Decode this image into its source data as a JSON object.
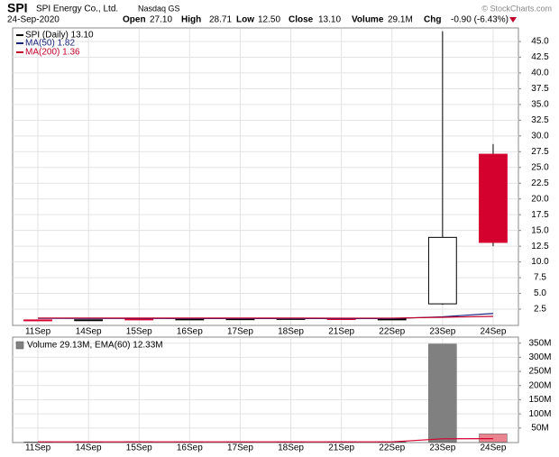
{
  "header": {
    "symbol": "SPI",
    "name": "SPI Energy Co., Ltd.",
    "exchange": "Nasdaq GS",
    "date": "24-Sep-2020",
    "quote": [
      {
        "label": "Open",
        "value": "27.10"
      },
      {
        "label": "High",
        "value": "28.71"
      },
      {
        "label": "Low",
        "value": "12.50"
      },
      {
        "label": "Close",
        "value": "13.10"
      },
      {
        "label": "Volume",
        "value": "29.1M"
      },
      {
        "label": "Chg",
        "value": "-0.90 (-6.43%)"
      }
    ],
    "credit": "© StockCharts.com"
  },
  "chart_data": [
    {
      "type": "candlestick",
      "categories": [
        "11Sep",
        "14Sep",
        "15Sep",
        "16Sep",
        "17Sep",
        "18Sep",
        "21Sep",
        "22Sep",
        "23Sep",
        "24Sep"
      ],
      "open": [
        0.8,
        0.8,
        0.95,
        0.92,
        0.96,
        1.0,
        1.0,
        0.9,
        3.35,
        27.1
      ],
      "high": [
        0.85,
        0.86,
        1.1,
        1.0,
        1.05,
        1.05,
        1.1,
        1.0,
        46.6,
        28.71
      ],
      "low": [
        0.74,
        0.76,
        0.88,
        0.88,
        0.9,
        0.95,
        0.85,
        0.85,
        3.2,
        12.5
      ],
      "close": [
        0.78,
        0.82,
        0.9,
        0.95,
        0.98,
        1.02,
        0.88,
        0.95,
        13.9,
        13.1
      ],
      "name": "SPI (Daily) 13.10",
      "color": "#000000",
      "up_color": "#ffffff",
      "down_color": "#d4002e",
      "series": [
        {
          "name": "MA(50) 1.82",
          "color": "#1a237e",
          "values": [
            1.05,
            1.04,
            1.03,
            1.02,
            1.02,
            1.02,
            1.01,
            1.01,
            1.3,
            1.82
          ]
        },
        {
          "name": "MA(200) 1.36",
          "color": "#c2002a",
          "values": [
            1.1,
            1.1,
            1.09,
            1.09,
            1.09,
            1.09,
            1.08,
            1.08,
            1.22,
            1.36
          ]
        }
      ],
      "ylim": [
        0,
        47
      ],
      "yticks": [
        2.5,
        {
          "value": 5,
          "label": "5.0"
        },
        7.5,
        {
          "value": 10,
          "label": "10.0"
        },
        12.5,
        {
          "value": 15,
          "label": "15.0"
        },
        17.5,
        {
          "value": 20,
          "label": "20.0"
        },
        22.5,
        {
          "value": 25,
          "label": "25.0"
        },
        27.5,
        {
          "value": 30,
          "label": "30.0"
        },
        32.5,
        {
          "value": 35,
          "label": "35.0"
        },
        37.5,
        {
          "value": 40,
          "label": "40.0"
        },
        42.5,
        {
          "value": 45,
          "label": "45.0"
        }
      ],
      "grid": true
    },
    {
      "type": "bar",
      "categories": [
        "11Sep",
        "14Sep",
        "15Sep",
        "16Sep",
        "17Sep",
        "18Sep",
        "21Sep",
        "22Sep",
        "23Sep",
        "24Sep"
      ],
      "legend": "Volume 29.13M, EMA(60) 12.33M",
      "values": [
        0.6,
        0.5,
        1.5,
        0.8,
        0.7,
        0.6,
        1.0,
        0.9,
        347,
        29.13
      ],
      "colors": [
        "#808080",
        "#808080",
        "#808080",
        "#808080",
        "#808080",
        "#808080",
        "#e8838f",
        "#808080",
        "#808080",
        "#e8838f"
      ],
      "series": [
        {
          "color": "#d4002e",
          "values": [
            1.0,
            1.0,
            1.0,
            1.0,
            1.0,
            1.0,
            1.0,
            1.0,
            11.8,
            12.33
          ]
        }
      ],
      "ylim": [
        0,
        365
      ],
      "yticks": [
        {
          "value": 50,
          "label": "50M"
        },
        {
          "value": 100,
          "label": "100M"
        },
        {
          "value": 150,
          "label": "150M"
        },
        {
          "value": 200,
          "label": "200M"
        },
        {
          "value": 250,
          "label": "250M"
        },
        {
          "value": 300,
          "label": "300M"
        },
        {
          "value": 350,
          "label": "350M"
        }
      ],
      "grid": true
    }
  ]
}
